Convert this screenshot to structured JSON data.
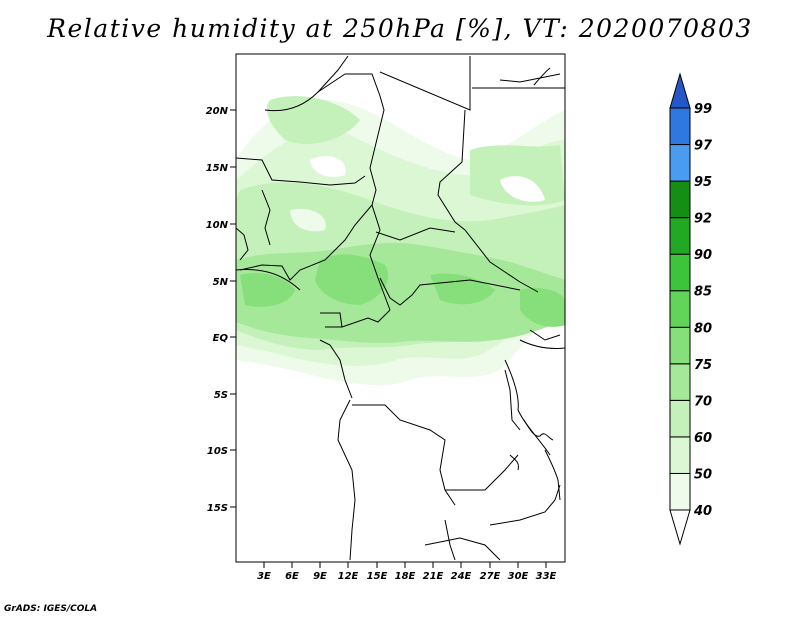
{
  "title": "Relative humidity at 250hPa [%], VT: 2020070803",
  "credit": "GrADS: IGES/COLA",
  "lat_ticks": [
    "20N",
    "15N",
    "10N",
    "5N",
    "EQ",
    "5S",
    "10S",
    "15S"
  ],
  "lon_ticks": [
    "3E",
    "6E",
    "9E",
    "12E",
    "15E",
    "18E",
    "21E",
    "24E",
    "27E",
    "30E",
    "33E"
  ],
  "colorbar": {
    "levels": [
      "99",
      "97",
      "95",
      "92",
      "90",
      "85",
      "80",
      "75",
      "70",
      "60",
      "50",
      "40"
    ],
    "bins": [
      {
        "range": "40-50",
        "color": "#eefbea"
      },
      {
        "range": "50-60",
        "color": "#dcf7d4"
      },
      {
        "range": "60-70",
        "color": "#c4f0ba"
      },
      {
        "range": "70-75",
        "color": "#a6e89a"
      },
      {
        "range": "75-80",
        "color": "#86df7a"
      },
      {
        "range": "80-85",
        "color": "#62d45a"
      },
      {
        "range": "85-90",
        "color": "#3ec43c"
      },
      {
        "range": "90-92",
        "color": "#22a822"
      },
      {
        "range": "92-95",
        "color": "#148e14"
      },
      {
        "range": "95-97",
        "color": "#4a9cf0"
      },
      {
        "range": "97-99",
        "color": "#2f78e0"
      },
      {
        "range": ">99",
        "color": "#2457c8"
      }
    ]
  }
}
